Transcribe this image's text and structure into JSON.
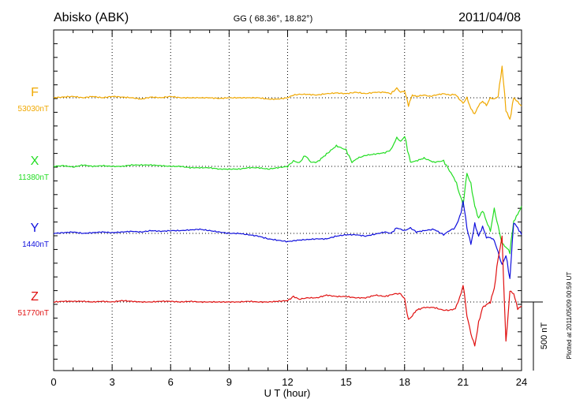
{
  "header": {
    "station": "Abisko (ABK)",
    "coords": "GG ( 68.36°,  18.82°)",
    "date": "2011/04/08"
  },
  "side_note": "Plotted at 2011/05/09 00:59 UT",
  "chart_data": {
    "type": "line",
    "xlabel": "U T (hour)",
    "xlim": [
      0,
      24
    ],
    "xticks": [
      0,
      3,
      6,
      9,
      12,
      15,
      18,
      21,
      24
    ],
    "grid": true,
    "scale_bar": {
      "label": "500 nT",
      "value_nT": 500
    },
    "series": [
      {
        "name": "F",
        "baseline_label": "53030nT",
        "color": "#f0a800",
        "x": [
          0,
          0.5,
          1,
          1.5,
          2,
          2.5,
          3,
          3.5,
          4,
          4.5,
          5,
          5.5,
          6,
          6.5,
          7,
          7.5,
          8,
          8.5,
          9,
          9.5,
          10,
          10.5,
          11,
          11.5,
          12,
          12.3,
          12.6,
          13,
          13.5,
          14,
          14.5,
          15,
          15.5,
          16,
          16.5,
          17,
          17.3,
          17.6,
          17.8,
          18,
          18.2,
          18.4,
          18.6,
          19,
          19.3,
          19.6,
          20,
          20.3,
          20.6,
          21,
          21.2,
          21.4,
          21.6,
          21.8,
          22,
          22.2,
          22.4,
          22.6,
          22.8,
          23,
          23.2,
          23.4,
          23.6,
          23.8,
          24
        ],
        "y": [
          0,
          5,
          10,
          0,
          10,
          0,
          10,
          5,
          0,
          -10,
          5,
          0,
          10,
          0,
          0,
          0,
          0,
          -5,
          0,
          0,
          0,
          0,
          -10,
          -10,
          0,
          20,
          25,
          25,
          20,
          30,
          35,
          30,
          40,
          30,
          40,
          40,
          30,
          70,
          40,
          50,
          -55,
          20,
          10,
          20,
          10,
          20,
          30,
          20,
          25,
          -40,
          0,
          -80,
          -120,
          -55,
          -25,
          -55,
          0,
          -10,
          10,
          230,
          -90,
          -160,
          0,
          -30,
          -60
        ]
      },
      {
        "name": "X",
        "baseline_label": "11380nT",
        "color": "#22dd22",
        "x": [
          0,
          0.5,
          1,
          1.5,
          2,
          2.5,
          3,
          3.5,
          4,
          4.5,
          5,
          5.5,
          6,
          6.5,
          7,
          7.5,
          8,
          8.5,
          9,
          9.5,
          10,
          10.5,
          11,
          11.5,
          12,
          12.3,
          12.6,
          12.9,
          13.2,
          13.5,
          14,
          14.5,
          15,
          15.3,
          15.6,
          16,
          16.5,
          17,
          17.3,
          17.6,
          17.8,
          18,
          18.3,
          18.6,
          19,
          19.5,
          20,
          20.3,
          20.6,
          21,
          21.2,
          21.4,
          21.6,
          21.8,
          22,
          22.2,
          22.4,
          22.6,
          22.8,
          23,
          23.2,
          23.4,
          23.6,
          23.8,
          24
        ],
        "y": [
          0,
          5,
          -5,
          10,
          0,
          5,
          0,
          0,
          10,
          10,
          10,
          5,
          0,
          0,
          -10,
          -10,
          -10,
          -20,
          -20,
          -20,
          -10,
          -10,
          -20,
          -10,
          0,
          40,
          25,
          80,
          30,
          30,
          90,
          150,
          120,
          30,
          60,
          80,
          90,
          100,
          120,
          210,
          180,
          220,
          30,
          40,
          60,
          30,
          40,
          -30,
          -100,
          -280,
          -50,
          -130,
          -290,
          -380,
          -320,
          -400,
          -470,
          -310,
          -440,
          -560,
          -590,
          -620,
          -400,
          -350,
          -290
        ]
      },
      {
        "name": "Y",
        "baseline_label": "1440nT",
        "color": "#1010dd",
        "x": [
          0,
          0.5,
          1,
          1.5,
          2,
          2.5,
          3,
          3.5,
          4,
          4.5,
          5,
          5.5,
          6,
          6.5,
          7,
          7.5,
          8,
          8.5,
          9,
          9.5,
          10,
          10.5,
          11,
          11.5,
          12,
          12.5,
          13,
          13.5,
          14,
          14.5,
          15,
          15.5,
          16,
          16.5,
          17,
          17.3,
          17.6,
          18,
          18.3,
          18.6,
          19,
          19.5,
          20,
          20.3,
          20.6,
          20.9,
          21,
          21.2,
          21.4,
          21.6,
          21.8,
          22,
          22.2,
          22.4,
          22.6,
          22.8,
          23,
          23.2,
          23.4,
          23.6,
          23.8,
          24
        ],
        "y": [
          0,
          5,
          10,
          0,
          5,
          10,
          5,
          10,
          15,
          10,
          20,
          15,
          20,
          20,
          25,
          30,
          20,
          10,
          0,
          0,
          -10,
          -20,
          -40,
          -50,
          -60,
          -50,
          -45,
          -40,
          -40,
          -20,
          -10,
          -10,
          -20,
          -5,
          10,
          0,
          40,
          20,
          40,
          10,
          20,
          30,
          -10,
          20,
          40,
          150,
          240,
          40,
          -80,
          70,
          -20,
          50,
          -30,
          -30,
          -50,
          -140,
          -230,
          -160,
          -330,
          80,
          40,
          -10
        ]
      },
      {
        "name": "Z",
        "baseline_label": "51770nT",
        "color": "#e01010",
        "x": [
          0,
          0.5,
          1,
          1.5,
          2,
          2.5,
          3,
          3.5,
          4,
          4.5,
          5,
          5.5,
          6,
          6.5,
          7,
          7.5,
          8,
          8.5,
          9,
          9.5,
          10,
          10.5,
          11,
          11.5,
          12,
          12.3,
          12.6,
          13,
          13.5,
          14,
          14.5,
          15,
          15.5,
          16,
          16.5,
          17,
          17.5,
          17.8,
          18,
          18.2,
          18.4,
          18.6,
          19,
          19.5,
          20,
          20.3,
          20.6,
          20.9,
          21,
          21.2,
          21.4,
          21.6,
          21.8,
          22,
          22.2,
          22.4,
          22.6,
          22.8,
          23,
          23.2,
          23.4,
          23.6,
          23.8,
          24
        ],
        "y": [
          0,
          5,
          5,
          5,
          0,
          5,
          0,
          10,
          5,
          0,
          0,
          5,
          5,
          0,
          5,
          0,
          0,
          0,
          0,
          0,
          5,
          0,
          0,
          5,
          10,
          40,
          20,
          30,
          30,
          50,
          40,
          40,
          30,
          30,
          50,
          40,
          60,
          60,
          20,
          -130,
          -100,
          -60,
          -40,
          -40,
          -60,
          -60,
          -50,
          60,
          130,
          -100,
          -230,
          -320,
          -150,
          -40,
          -20,
          0,
          100,
          320,
          470,
          -300,
          80,
          60,
          -50,
          -30
        ]
      }
    ]
  }
}
